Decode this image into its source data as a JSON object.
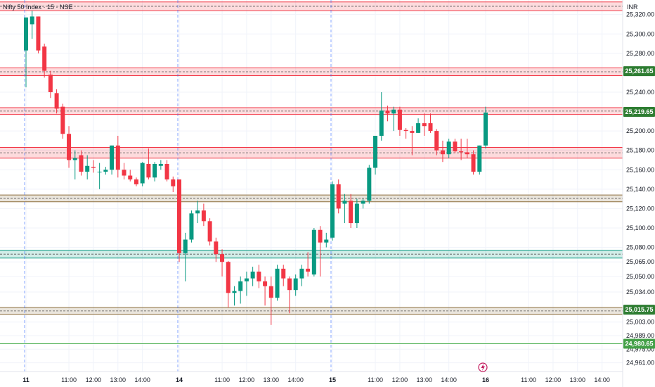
{
  "header": {
    "title": "Nifty 50 Index · 15 · NSE",
    "currency": "INR"
  },
  "chart_data": {
    "type": "candlestick",
    "instrument": "Nifty 50 Index",
    "interval": "15",
    "exchange": "NSE",
    "ylim": [
      24952,
      25335
    ],
    "x_ticks": [
      {
        "label": "11",
        "bar": 0
      },
      {
        "label": "11:00",
        "bar": 7
      },
      {
        "label": "12:00",
        "bar": 11
      },
      {
        "label": "13:00",
        "bar": 15
      },
      {
        "label": "14:00",
        "bar": 19
      },
      {
        "label": "14",
        "bar": 25
      },
      {
        "label": "11:00",
        "bar": 32
      },
      {
        "label": "12:00",
        "bar": 36
      },
      {
        "label": "13:00",
        "bar": 40
      },
      {
        "label": "14:00",
        "bar": 44
      },
      {
        "label": "15",
        "bar": 50
      },
      {
        "label": "11:00",
        "bar": 57
      },
      {
        "label": "12:00",
        "bar": 61
      },
      {
        "label": "13:00",
        "bar": 65
      },
      {
        "label": "14:00",
        "bar": 69
      },
      {
        "label": "16",
        "bar": 75
      },
      {
        "label": "11:00",
        "bar": 82
      },
      {
        "label": "12:00",
        "bar": 86
      },
      {
        "label": "13:00",
        "bar": 90
      },
      {
        "label": "14:00",
        "bar": 94
      }
    ],
    "y_ticks": [
      25320,
      25300,
      25280,
      25240,
      25200,
      25180,
      25160,
      25140,
      25120,
      25100,
      25080,
      25065,
      25050,
      25034,
      25003,
      24989,
      24975,
      24961
    ],
    "day_separators_at_bar": [
      0,
      25,
      50
    ],
    "price_labels": [
      {
        "value": 25261.65,
        "text": "25,261.65"
      },
      {
        "value": 25219.65,
        "text": "25,219.65"
      },
      {
        "value": 25015.75,
        "text": "25,015.75"
      },
      {
        "value": 24980.65,
        "text": "24,980.65"
      }
    ],
    "zones": [
      {
        "top": 25333,
        "bottom": 25324,
        "color": "#f23645"
      },
      {
        "top": 25265,
        "bottom": 25257,
        "color": "#f23645"
      },
      {
        "top": 25224,
        "bottom": 25217,
        "color": "#f23645"
      },
      {
        "top": 25183,
        "bottom": 25172,
        "color": "#f23645"
      },
      {
        "top": 25134,
        "bottom": 25127,
        "color": "#8d6e3c"
      },
      {
        "top": 25077,
        "bottom": 25069,
        "color": "#089981"
      },
      {
        "top": 25018,
        "bottom": 25011,
        "color": "#8d6e3c"
      }
    ],
    "hline": {
      "value": 24980.65,
      "color": "#4caf50"
    },
    "candles": [
      {
        "o": 25283,
        "h": 25317,
        "l": 25245,
        "c": 25317
      },
      {
        "o": 25310,
        "h": 25324,
        "l": 25295,
        "c": 25318
      },
      {
        "o": 25318,
        "h": 25318,
        "l": 25280,
        "c": 25283
      },
      {
        "o": 25287,
        "h": 25290,
        "l": 25255,
        "c": 25262
      },
      {
        "o": 25258,
        "h": 25262,
        "l": 25234,
        "c": 25240
      },
      {
        "o": 25239,
        "h": 25243,
        "l": 25218,
        "c": 25223
      },
      {
        "o": 25225,
        "h": 25228,
        "l": 25192,
        "c": 25197
      },
      {
        "o": 25197,
        "h": 25205,
        "l": 25162,
        "c": 25170
      },
      {
        "o": 25170,
        "h": 25180,
        "l": 25150,
        "c": 25172
      },
      {
        "o": 25175,
        "h": 25180,
        "l": 25154,
        "c": 25158
      },
      {
        "o": 25158,
        "h": 25175,
        "l": 25150,
        "c": 25164
      },
      {
        "o": 25163,
        "h": 25170,
        "l": 25157,
        "c": 25162
      },
      {
        "o": 25158,
        "h": 25167,
        "l": 25140,
        "c": 25158
      },
      {
        "o": 25158,
        "h": 25163,
        "l": 25155,
        "c": 25160
      },
      {
        "o": 25160,
        "h": 25185,
        "l": 25155,
        "c": 25185
      },
      {
        "o": 25185,
        "h": 25195,
        "l": 25152,
        "c": 25160
      },
      {
        "o": 25160,
        "h": 25167,
        "l": 25150,
        "c": 25154
      },
      {
        "o": 25154,
        "h": 25160,
        "l": 25148,
        "c": 25150
      },
      {
        "o": 25150,
        "h": 25152,
        "l": 25143,
        "c": 25145
      },
      {
        "o": 25146,
        "h": 25168,
        "l": 25143,
        "c": 25167
      },
      {
        "o": 25166,
        "h": 25182,
        "l": 25150,
        "c": 25152
      },
      {
        "o": 25152,
        "h": 25168,
        "l": 25148,
        "c": 25166
      },
      {
        "o": 25164,
        "h": 25170,
        "l": 25160,
        "c": 25166
      },
      {
        "o": 25166,
        "h": 25170,
        "l": 25148,
        "c": 25150
      },
      {
        "o": 25150,
        "h": 25153,
        "l": 25137,
        "c": 25143
      },
      {
        "o": 25150,
        "h": 25150,
        "l": 25065,
        "c": 25074
      },
      {
        "o": 25074,
        "h": 25095,
        "l": 25045,
        "c": 25088
      },
      {
        "o": 25088,
        "h": 25118,
        "l": 25085,
        "c": 25115
      },
      {
        "o": 25115,
        "h": 25128,
        "l": 25105,
        "c": 25118
      },
      {
        "o": 25118,
        "h": 25125,
        "l": 25102,
        "c": 25107
      },
      {
        "o": 25107,
        "h": 25110,
        "l": 25082,
        "c": 25086
      },
      {
        "o": 25086,
        "h": 25090,
        "l": 25065,
        "c": 25073
      },
      {
        "o": 25073,
        "h": 25078,
        "l": 25050,
        "c": 25065
      },
      {
        "o": 25065,
        "h": 25066,
        "l": 25018,
        "c": 25033
      },
      {
        "o": 25033,
        "h": 25040,
        "l": 25020,
        "c": 25035
      },
      {
        "o": 25035,
        "h": 25050,
        "l": 25022,
        "c": 25045
      },
      {
        "o": 25045,
        "h": 25055,
        "l": 25030,
        "c": 25048
      },
      {
        "o": 25048,
        "h": 25060,
        "l": 25040,
        "c": 25055
      },
      {
        "o": 25055,
        "h": 25062,
        "l": 25038,
        "c": 25045
      },
      {
        "o": 25045,
        "h": 25050,
        "l": 25020,
        "c": 25040
      },
      {
        "o": 25040,
        "h": 25050,
        "l": 25000,
        "c": 25028
      },
      {
        "o": 25028,
        "h": 25062,
        "l": 25025,
        "c": 25058
      },
      {
        "o": 25058,
        "h": 25062,
        "l": 25040,
        "c": 25048
      },
      {
        "o": 25048,
        "h": 25050,
        "l": 25012,
        "c": 25036
      },
      {
        "o": 25036,
        "h": 25052,
        "l": 25030,
        "c": 25048
      },
      {
        "o": 25048,
        "h": 25062,
        "l": 25040,
        "c": 25058
      },
      {
        "o": 25058,
        "h": 25075,
        "l": 25050,
        "c": 25055
      },
      {
        "o": 25052,
        "h": 25100,
        "l": 25050,
        "c": 25098
      },
      {
        "o": 25098,
        "h": 25102,
        "l": 25050,
        "c": 25085
      },
      {
        "o": 25085,
        "h": 25095,
        "l": 25080,
        "c": 25088
      },
      {
        "o": 25090,
        "h": 25148,
        "l": 25087,
        "c": 25145
      },
      {
        "o": 25145,
        "h": 25150,
        "l": 25115,
        "c": 25120
      },
      {
        "o": 25125,
        "h": 25135,
        "l": 25105,
        "c": 25128
      },
      {
        "o": 25128,
        "h": 25135,
        "l": 25100,
        "c": 25105
      },
      {
        "o": 25105,
        "h": 25130,
        "l": 25100,
        "c": 25125
      },
      {
        "o": 25125,
        "h": 25130,
        "l": 25120,
        "c": 25128
      },
      {
        "o": 25128,
        "h": 25165,
        "l": 25125,
        "c": 25162
      },
      {
        "o": 25162,
        "h": 25195,
        "l": 25155,
        "c": 25195
      },
      {
        "o": 25195,
        "h": 25240,
        "l": 25190,
        "c": 25221
      },
      {
        "o": 25221,
        "h": 25226,
        "l": 25210,
        "c": 25218
      },
      {
        "o": 25218,
        "h": 25225,
        "l": 25200,
        "c": 25222
      },
      {
        "o": 25222,
        "h": 25225,
        "l": 25195,
        "c": 25201
      },
      {
        "o": 25201,
        "h": 25203,
        "l": 25192,
        "c": 25200
      },
      {
        "o": 25200,
        "h": 25205,
        "l": 25175,
        "c": 25198
      },
      {
        "o": 25198,
        "h": 25213,
        "l": 25198,
        "c": 25208
      },
      {
        "o": 25208,
        "h": 25218,
        "l": 25195,
        "c": 25205
      },
      {
        "o": 25208,
        "h": 25218,
        "l": 25198,
        "c": 25200
      },
      {
        "o": 25200,
        "h": 25202,
        "l": 25175,
        "c": 25180
      },
      {
        "o": 25180,
        "h": 25190,
        "l": 25168,
        "c": 25176
      },
      {
        "o": 25176,
        "h": 25192,
        "l": 25172,
        "c": 25189
      },
      {
        "o": 25189,
        "h": 25192,
        "l": 25177,
        "c": 25179
      },
      {
        "o": 25179,
        "h": 25192,
        "l": 25170,
        "c": 25178
      },
      {
        "o": 25178,
        "h": 25192,
        "l": 25172,
        "c": 25176
      },
      {
        "o": 25176,
        "h": 25180,
        "l": 25155,
        "c": 25158
      },
      {
        "o": 25158,
        "h": 25185,
        "l": 25155,
        "c": 25185
      },
      {
        "o": 25185,
        "h": 25225,
        "l": 25182,
        "c": 25219
      }
    ]
  }
}
